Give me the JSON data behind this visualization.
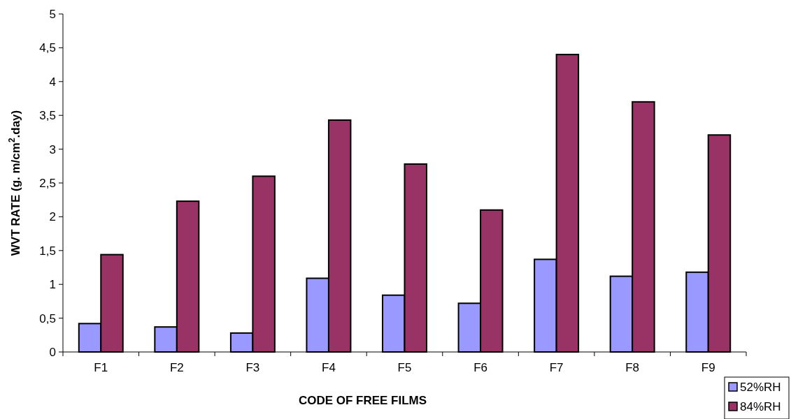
{
  "chart_data": {
    "type": "bar",
    "xlabel": "CODE OF FREE FILMS",
    "ylabel": "WVT RATE (g.  m/cm$^{2}$.day)",
    "categories": [
      "F1",
      "F2",
      "F3",
      "F4",
      "F5",
      "F6",
      "F7",
      "F8",
      "F9"
    ],
    "series": [
      {
        "name": "52%RH",
        "color": "#9999ff",
        "values": [
          0.42,
          0.37,
          0.28,
          1.09,
          0.84,
          0.72,
          1.37,
          1.12,
          1.18
        ]
      },
      {
        "name": "84%RH",
        "color": "#993366",
        "values": [
          1.44,
          2.23,
          2.6,
          3.43,
          2.78,
          2.1,
          4.4,
          3.7,
          3.21
        ]
      }
    ],
    "ylim": [
      0,
      5
    ],
    "yticks": [
      0,
      {
        "value": 0.5,
        "label": "0,5"
      },
      1,
      {
        "value": 1.5,
        "label": "1,5"
      },
      2,
      {
        "value": 2.5,
        "label": "2,5"
      },
      3,
      {
        "value": 3.5,
        "label": "3,5"
      },
      4,
      {
        "value": 4.5,
        "label": "4,5"
      },
      5
    ],
    "grid": false,
    "legend": "bottom right"
  }
}
